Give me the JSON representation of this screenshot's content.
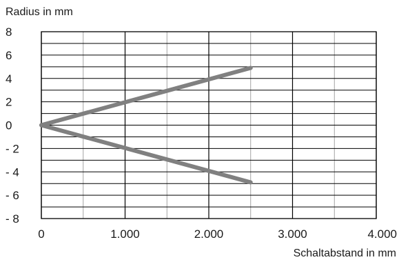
{
  "chart_data": {
    "type": "line",
    "xlabel": "Schaltabstand in mm",
    "ylabel": "Radius in mm",
    "xlim": [
      0,
      4000
    ],
    "ylim": [
      -8,
      8
    ],
    "grid": true,
    "x_ticks": [
      0,
      1000,
      2000,
      3000,
      4000
    ],
    "x_tick_labels": [
      "0",
      "1.000",
      "2.000",
      "3.000",
      "4.000"
    ],
    "y_ticks": [
      8,
      6,
      4,
      2,
      0,
      -2,
      -4,
      -6,
      -8
    ],
    "y_tick_labels": [
      "8",
      "6",
      "4",
      "2",
      "0",
      "- 2",
      "- 4",
      "- 6",
      "- 8"
    ],
    "line_color": "#808080",
    "series": [
      {
        "x": [
          0,
          2500
        ],
        "y": [
          0,
          4.9
        ]
      },
      {
        "x": [
          0,
          2500
        ],
        "y": [
          0,
          -4.9
        ]
      }
    ]
  }
}
